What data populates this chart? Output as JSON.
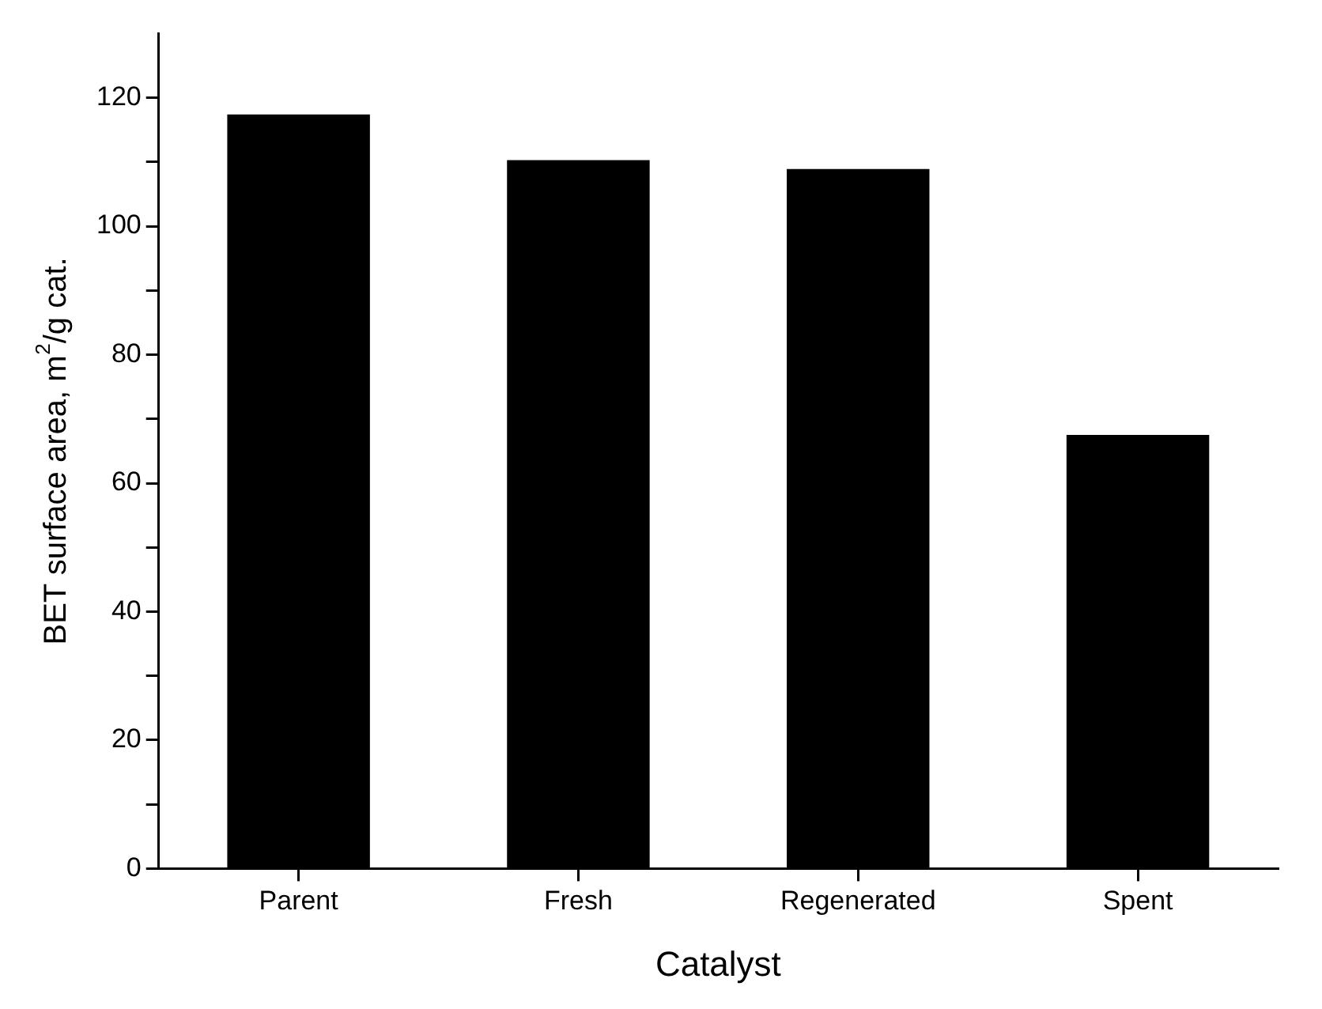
{
  "chart_data": {
    "type": "bar",
    "xlabel": "Catalyst",
    "ylabel": "BET surface area, m$^{2}$/g cat.",
    "categories": [
      "Parent",
      "Fresh",
      "Regenerated",
      "Spent"
    ],
    "values": [
      117.4,
      110.3,
      108.9,
      67.5
    ],
    "color": "#000000",
    "ylim": [
      0,
      130
    ],
    "yticks": [
      0,
      {
        "value": 10,
        "label": null
      },
      20,
      {
        "value": 30,
        "label": null
      },
      40,
      {
        "value": 50,
        "label": null
      },
      60,
      {
        "value": 70,
        "label": null
      },
      80,
      {
        "value": 90,
        "label": null
      },
      100,
      {
        "value": 110,
        "label": null
      },
      120
    ],
    "grid": false,
    "legend": false
  }
}
